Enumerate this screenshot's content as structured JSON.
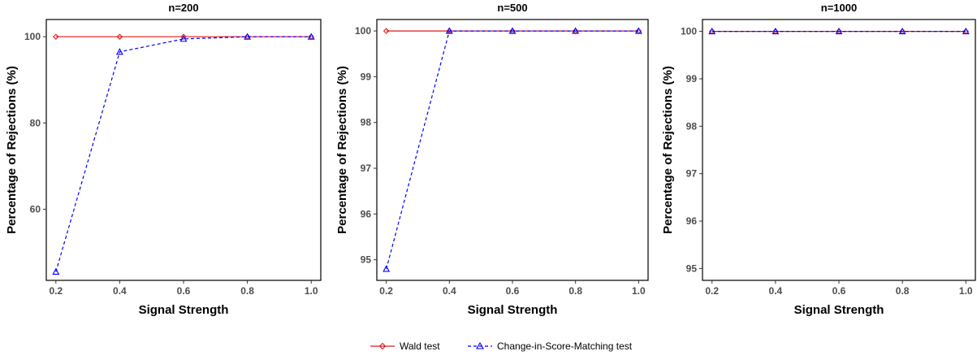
{
  "chart_data": [
    {
      "type": "line",
      "title": "n=200",
      "xlabel": "Signal Strength",
      "ylabel": "Percentage of Rejections (%)",
      "x": [
        0.2,
        0.4,
        0.6,
        0.8,
        1.0
      ],
      "xticks": [
        "0.2",
        "0.4",
        "0.6",
        "0.8",
        "1.0"
      ],
      "yticks": [
        "60",
        "80",
        "100"
      ],
      "ylim": [
        43.5,
        104
      ],
      "series": [
        {
          "name": "Wald test",
          "values": [
            100,
            100,
            100,
            100,
            100
          ]
        },
        {
          "name": "Change-in-Score-Matching test",
          "values": [
            45.5,
            96.5,
            99.5,
            100,
            100
          ]
        }
      ]
    },
    {
      "type": "line",
      "title": "n=500",
      "xlabel": "Signal Strength",
      "ylabel": "Percentage of Rejections (%)",
      "x": [
        0.2,
        0.4,
        0.6,
        0.8,
        1.0
      ],
      "xticks": [
        "0.2",
        "0.4",
        "0.6",
        "0.8",
        "1.0"
      ],
      "yticks": [
        "95",
        "96",
        "97",
        "98",
        "99",
        "100"
      ],
      "ylim": [
        94.55,
        100.25
      ],
      "series": [
        {
          "name": "Wald test",
          "values": [
            100,
            100,
            100,
            100,
            100
          ]
        },
        {
          "name": "Change-in-Score-Matching test",
          "values": [
            94.8,
            100,
            100,
            100,
            100
          ]
        }
      ]
    },
    {
      "type": "line",
      "title": "n=1000",
      "xlabel": "Signal Strength",
      "ylabel": "Percentage of Rejections (%)",
      "x": [
        0.2,
        0.4,
        0.6,
        0.8,
        1.0
      ],
      "xticks": [
        "0.2",
        "0.4",
        "0.6",
        "0.8",
        "1.0"
      ],
      "yticks": [
        "95",
        "96",
        "97",
        "98",
        "99",
        "100"
      ],
      "ylim": [
        94.75,
        100.25
      ],
      "series": [
        {
          "name": "Wald test",
          "values": [
            100,
            100,
            100,
            100,
            100
          ]
        },
        {
          "name": "Change-in-Score-Matching test",
          "values": [
            100,
            100,
            100,
            100,
            100
          ]
        }
      ]
    }
  ],
  "legend": {
    "position": "bottom-center",
    "items": [
      {
        "label": "Wald test",
        "color": "#e41a1c",
        "line": "solid",
        "marker": "diamond"
      },
      {
        "label": "Change-in-Score-Matching test",
        "color": "#0000ff",
        "line": "dashed",
        "marker": "triangle"
      }
    ]
  },
  "style": {
    "grid": false,
    "xlim": [
      0.17,
      1.03
    ]
  }
}
